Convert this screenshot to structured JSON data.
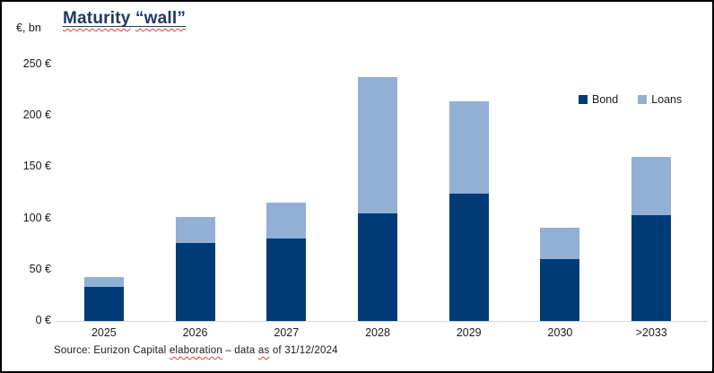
{
  "title": {
    "text": "Maturity “wall”",
    "color": "#1F3864",
    "parts": [
      {
        "text": "Maturity",
        "wavy": true
      },
      {
        "text": " ",
        "wavy": false
      },
      {
        "text": "“wall”",
        "wavy": true
      }
    ]
  },
  "source_note": {
    "text": "Source: Eurizon Capital elaboration – data as of 31/12/2024",
    "parts": [
      {
        "text": "Source: Eurizon Capital ",
        "wavy": false
      },
      {
        "text": "elaboration",
        "wavy": true
      },
      {
        "text": " – data ",
        "wavy": false
      },
      {
        "text": "as",
        "wavy": true
      },
      {
        "text": " of 31/12/2024",
        "wavy": false
      }
    ]
  },
  "chart_data": {
    "type": "bar",
    "stacked": true,
    "title": "Maturity “wall”",
    "ylabel": "€, bn",
    "xlabel": "",
    "categories": [
      "2025",
      "2026",
      "2027",
      "2028",
      "2029",
      "2030",
      ">2033"
    ],
    "series": [
      {
        "name": "Bond",
        "color": "#003B78",
        "values": [
          33,
          76,
          80,
          105,
          124,
          60,
          103
        ]
      },
      {
        "name": "Loans",
        "color": "#92AFD6",
        "values": [
          10,
          25,
          35,
          133,
          90,
          31,
          57
        ]
      }
    ],
    "stack_totals": [
      43,
      101,
      115,
      238,
      214,
      91,
      160
    ],
    "ylim": [
      0,
      250
    ],
    "yticks": [
      {
        "value": 0,
        "label": "0 €"
      },
      {
        "value": 50,
        "label": "50 €"
      },
      {
        "value": 100,
        "label": "100 €"
      },
      {
        "value": 150,
        "label": "150 €"
      },
      {
        "value": 200,
        "label": "200 €"
      },
      {
        "value": 250,
        "label": "250 €"
      }
    ],
    "grid": false,
    "legend_position": "top-right",
    "axis_line_color": "#D9D9D9",
    "text_color": "#1a1a1a"
  }
}
